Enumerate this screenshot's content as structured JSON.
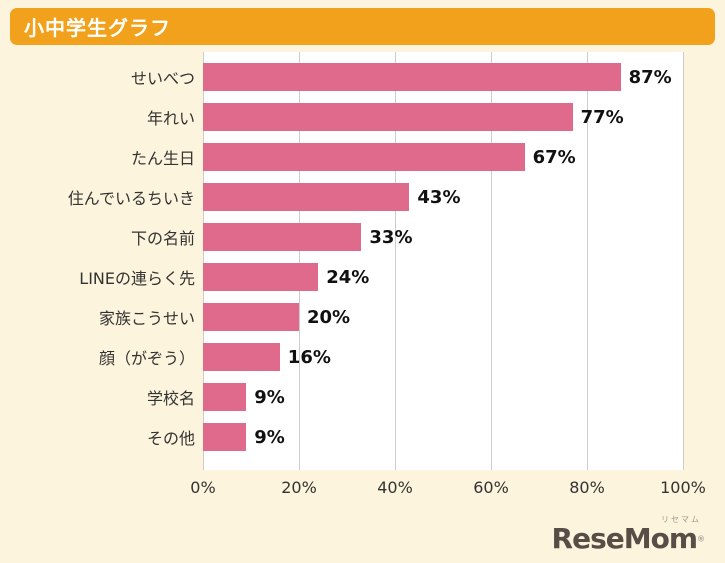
{
  "header": {
    "title": "小中学生グラフ"
  },
  "chart_data": {
    "type": "bar",
    "orientation": "horizontal",
    "title": "小中学生グラフ",
    "categories": [
      "せいべつ",
      "年れい",
      "たん生日",
      "住んでいるちいき",
      "下の名前",
      "LINEの連らく先",
      "家族こうせい",
      "顔（がぞう）",
      "学校名",
      "その他"
    ],
    "values": [
      87,
      77,
      67,
      43,
      33,
      24,
      20,
      16,
      9,
      9
    ],
    "value_suffix": "%",
    "xlim": [
      0,
      100
    ],
    "x_ticks": [
      "0%",
      "20%",
      "40%",
      "60%",
      "80%",
      "100%"
    ],
    "grid": true,
    "legend": "none",
    "bar_color": "#e06a8c",
    "background_color": "#fcf4dc",
    "header_color": "#f1a11b"
  },
  "logo": {
    "ruby": "リセマム",
    "text": "ReseMom",
    "reg": "®"
  }
}
